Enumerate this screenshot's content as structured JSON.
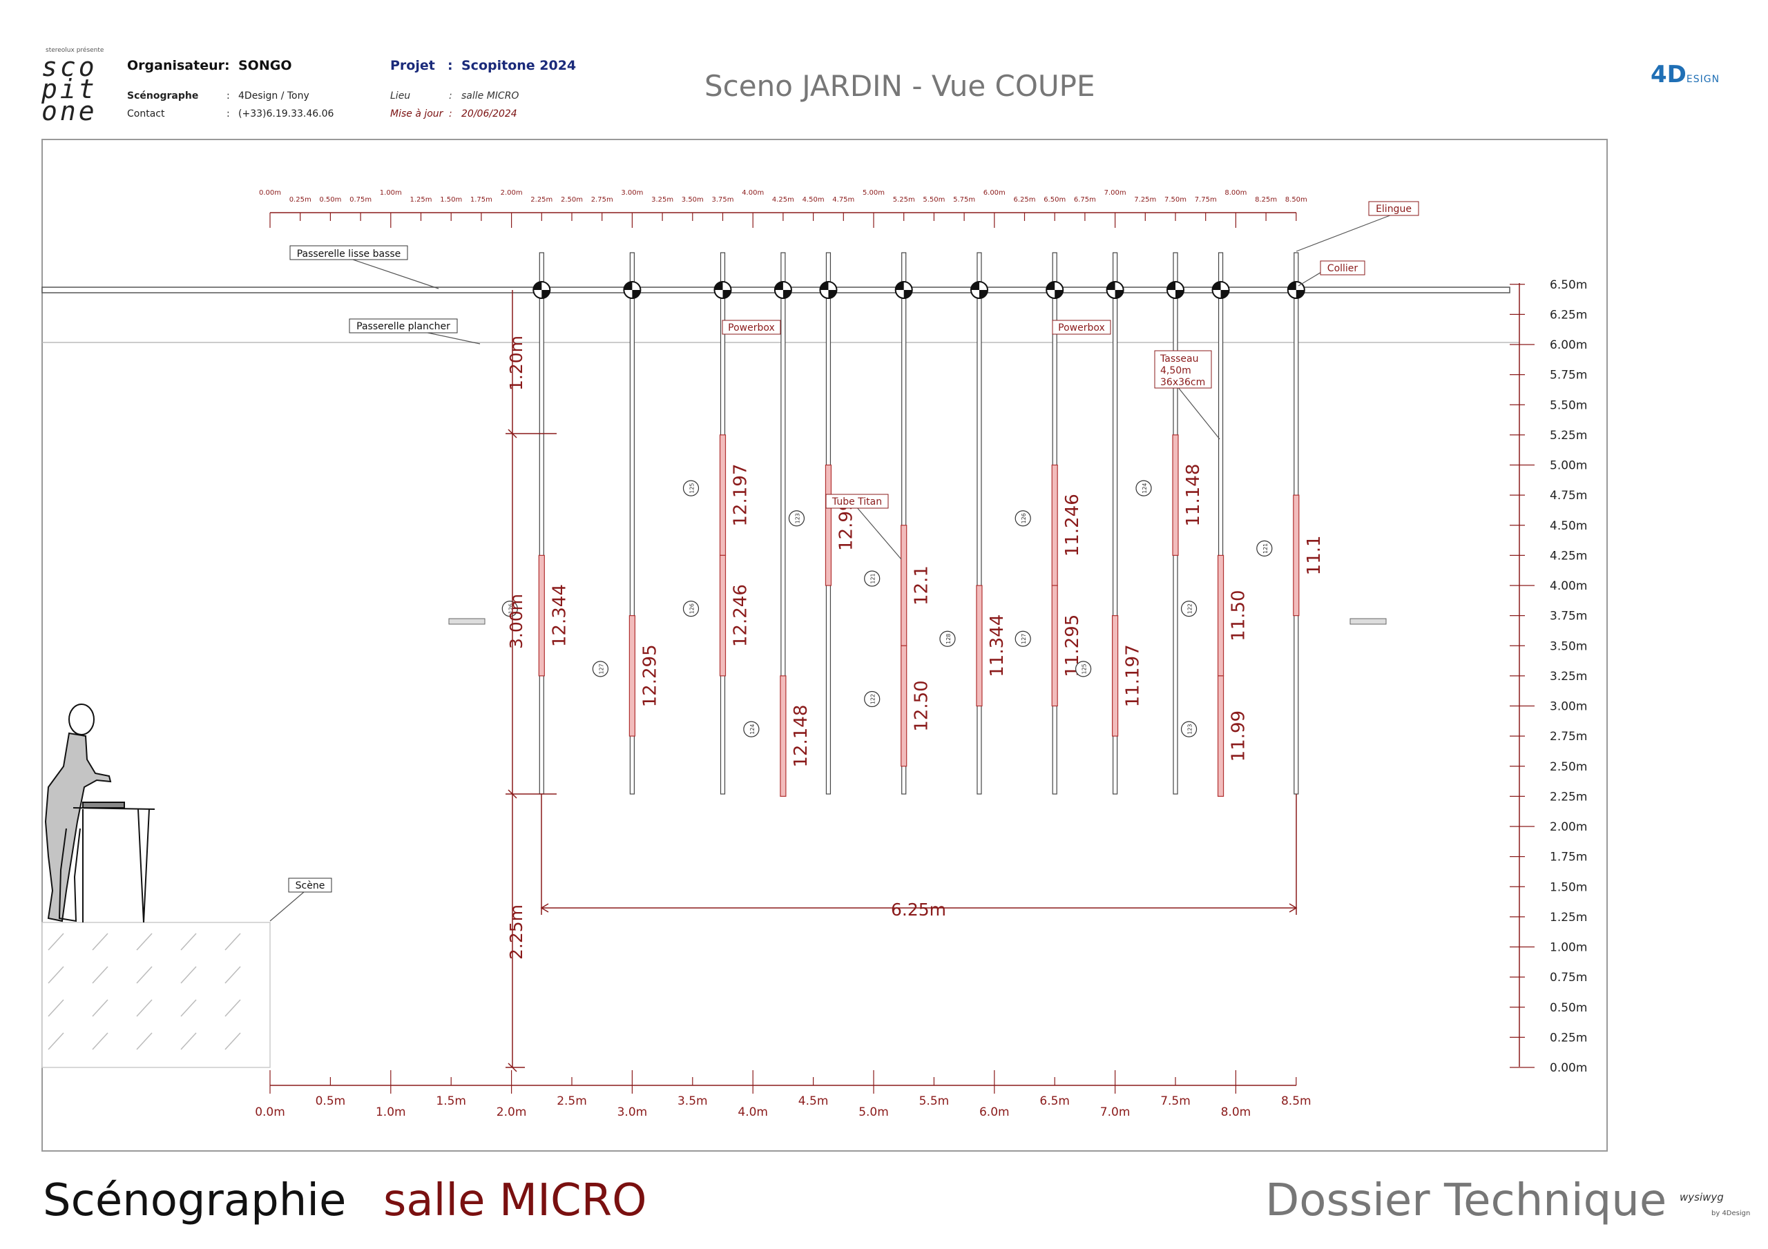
{
  "header": {
    "logo": {
      "small": "stereolux présente",
      "lines": [
        "sco",
        "pit",
        "one"
      ]
    },
    "organisateur_label": "Organisateur",
    "organisateur_value": "SONGO",
    "scenographe_label": "Scénographe",
    "scenographe_value": "4Design / Tony",
    "contact_label": "Contact",
    "contact_value": "(+33)6.19.33.46.06",
    "projet_label": "Projet",
    "projet_value": "Scopitone 2024",
    "lieu_label": "Lieu",
    "lieu_value": "salle MICRO",
    "maj_label": "Mise à jour",
    "maj_value": "20/06/2024",
    "sep": ":",
    "title": "Sceno JARDIN - Vue COUPE",
    "brand": "4D",
    "brand_suffix": "ESIGN"
  },
  "diagram": {
    "top_ruler": [
      "0.00m",
      "0.25m",
      "0.50m",
      "0.75m",
      "1.00m",
      "1.25m",
      "1.50m",
      "1.75m",
      "2.00m",
      "2.25m",
      "2.50m",
      "2.75m",
      "3.00m",
      "3.25m",
      "3.50m",
      "3.75m",
      "4.00m",
      "4.25m",
      "4.50m",
      "4.75m",
      "5.00m",
      "5.25m",
      "5.50m",
      "5.75m",
      "6.00m",
      "6.25m",
      "6.50m",
      "6.75m",
      "7.00m",
      "7.25m",
      "7.50m",
      "7.75m",
      "8.00m",
      "8.25m",
      "8.50m"
    ],
    "bottom_ruler": [
      "0.0m",
      "0.5m",
      "1.0m",
      "1.5m",
      "2.0m",
      "2.5m",
      "3.0m",
      "3.5m",
      "4.0m",
      "4.5m",
      "5.0m",
      "5.5m",
      "6.0m",
      "6.5m",
      "7.0m",
      "7.5m",
      "8.0m",
      "8.5m"
    ],
    "height_scale": [
      "0.00m",
      "0.25m",
      "0.50m",
      "0.75m",
      "1.00m",
      "1.25m",
      "1.50m",
      "1.75m",
      "2.00m",
      "2.25m",
      "2.50m",
      "2.75m",
      "3.00m",
      "3.25m",
      "3.50m",
      "3.75m",
      "4.00m",
      "4.25m",
      "4.50m",
      "4.75m",
      "5.00m",
      "5.25m",
      "5.50m",
      "5.75m",
      "6.00m",
      "6.25m",
      "6.50m"
    ],
    "labels": {
      "elingue": "Elingue",
      "collier": "Collier",
      "passerelle_lisse": "Passerelle lisse basse",
      "passerelle_plancher": "Passerelle plancher",
      "powerbox1": "Powerbox",
      "powerbox2": "Powerbox",
      "tasseau": [
        "Tasseau",
        "4,50m",
        "36x36cm"
      ],
      "tube_titan": "Tube Titan",
      "scene": "Scène"
    },
    "dimensions": {
      "d120": "1.20m",
      "d300": "3.00m",
      "d225": "2.25m",
      "d625": "6.25m"
    },
    "tubes": [
      {
        "x": 2.25,
        "lights": [
          {
            "bottom": 3.25,
            "top": 4.25,
            "label": "12.344",
            "num": "126"
          }
        ]
      },
      {
        "x": 3.0,
        "lights": [
          {
            "bottom": 2.75,
            "top": 3.75,
            "label": "12.295",
            "num": "127"
          }
        ]
      },
      {
        "x": 3.75,
        "lights": [
          {
            "bottom": 4.25,
            "top": 5.25,
            "label": "12.197",
            "num": "125"
          },
          {
            "bottom": 3.25,
            "top": 4.25,
            "label": "12.246",
            "num": "126"
          }
        ]
      },
      {
        "x": 4.25,
        "lights": [
          {
            "bottom": 2.25,
            "top": 3.25,
            "label": "12.148",
            "num": "124"
          }
        ]
      },
      {
        "x": 4.625,
        "lights": [
          {
            "bottom": 4.0,
            "top": 5.0,
            "label": "12.99",
            "num": "123"
          }
        ]
      },
      {
        "x": 5.25,
        "lights": [
          {
            "bottom": 3.5,
            "top": 4.5,
            "label": "12.1",
            "num": "121"
          },
          {
            "bottom": 2.5,
            "top": 3.5,
            "label": "12.50",
            "num": "122"
          }
        ]
      },
      {
        "x": 5.875,
        "lights": [
          {
            "bottom": 3.0,
            "top": 4.0,
            "label": "11.344",
            "num": "128"
          }
        ]
      },
      {
        "x": 6.5,
        "lights": [
          {
            "bottom": 4.0,
            "top": 5.0,
            "label": "11.246",
            "num": "126"
          },
          {
            "bottom": 3.0,
            "top": 4.0,
            "label": "11.295",
            "num": "127"
          }
        ]
      },
      {
        "x": 7.0,
        "lights": [
          {
            "bottom": 2.75,
            "top": 3.75,
            "label": "11.197",
            "num": "125"
          }
        ]
      },
      {
        "x": 7.5,
        "lights": [
          {
            "bottom": 4.25,
            "top": 5.25,
            "label": "11.148",
            "num": "124"
          }
        ]
      },
      {
        "x": 7.875,
        "lights": [
          {
            "bottom": 3.25,
            "top": 4.25,
            "label": "11.50",
            "num": "122"
          },
          {
            "bottom": 2.25,
            "top": 3.25,
            "label": "11.99",
            "num": "123"
          }
        ]
      },
      {
        "x": 8.5,
        "lights": [
          {
            "bottom": 3.75,
            "top": 4.75,
            "label": "11.1",
            "num": "121"
          }
        ]
      }
    ],
    "colors": {
      "dim_red": "#8a1a1a",
      "fixture_fill": "#f2bcbc",
      "fixture_stroke": "#b03030",
      "line": "#444444"
    }
  },
  "footer": {
    "left": "Scénographie",
    "mid": "salle MICRO",
    "right": "Dossier Technique",
    "logo": "wysiwyg",
    "logo_sub": "by 4Design"
  }
}
